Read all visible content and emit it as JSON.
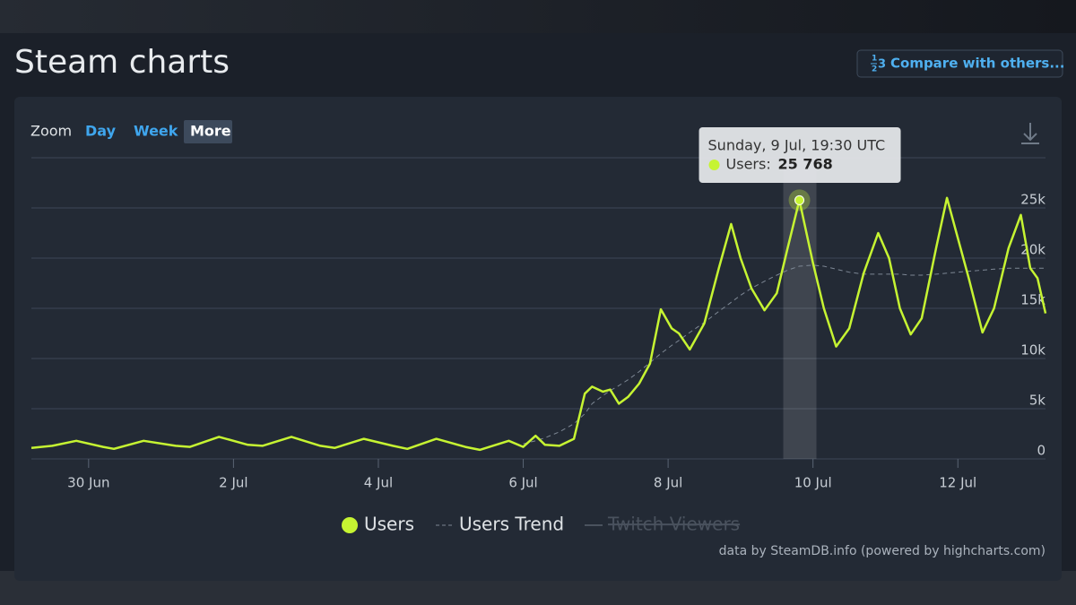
{
  "header": {
    "title": "Steam charts",
    "compare_button": "Compare with others..."
  },
  "zoom": {
    "label": "Zoom",
    "options": [
      "Day",
      "Week",
      "More"
    ],
    "active": "More"
  },
  "credit": "data by SteamDB.info (powered by highcharts.com)",
  "chart_data": {
    "type": "line",
    "x": [
      -0.79,
      -0.5,
      -0.17,
      0.2,
      0.35,
      0.76,
      1.2,
      1.4,
      1.8,
      2.2,
      2.4,
      2.8,
      3.2,
      3.4,
      3.8,
      4.2,
      4.4,
      4.8,
      5.2,
      5.4,
      5.8,
      6.0,
      6.17,
      6.3,
      6.5,
      6.7,
      6.85,
      6.95,
      7.1,
      7.2,
      7.32,
      7.45,
      7.6,
      7.75,
      7.9,
      8.05,
      8.15,
      8.3,
      8.5,
      8.7,
      8.87,
      9.0,
      9.15,
      9.33,
      9.5,
      9.65,
      9.8125,
      10.0,
      10.15,
      10.32,
      10.5,
      10.7,
      10.9,
      11.05,
      11.2,
      11.35,
      11.5,
      11.7,
      11.85,
      12.0,
      12.15,
      12.34,
      12.5,
      12.7,
      12.87,
      13.0,
      13.1,
      13.21
    ],
    "series": [
      {
        "name": "Users",
        "color": "#c6f432",
        "style": "solid",
        "values": [
          1100,
          1300,
          1800,
          1200,
          1000,
          1800,
          1300,
          1200,
          2200,
          1400,
          1300,
          2200,
          1300,
          1100,
          2000,
          1300,
          1000,
          2000,
          1200,
          900,
          1800,
          1200,
          2300,
          1400,
          1300,
          2000,
          6500,
          7200,
          6700,
          6900,
          5500,
          6200,
          7500,
          9500,
          14900,
          13000,
          12500,
          10900,
          13500,
          19000,
          23400,
          20000,
          17000,
          14800,
          16500,
          21000,
          25768,
          19500,
          15000,
          11200,
          13000,
          18500,
          22500,
          20000,
          15000,
          12400,
          14000,
          21000,
          26000,
          22000,
          18000,
          12600,
          15000,
          21000,
          24300,
          19000,
          18000,
          14500
        ]
      },
      {
        "name": "Users Trend",
        "color": "#7d8794",
        "style": "dashed",
        "values": [
          null,
          null,
          null,
          null,
          null,
          null,
          null,
          null,
          null,
          null,
          null,
          null,
          null,
          null,
          null,
          null,
          null,
          null,
          null,
          null,
          null,
          1500,
          1800,
          2100,
          2700,
          3500,
          4500,
          5500,
          6300,
          6800,
          7300,
          7900,
          8700,
          9600,
          10500,
          11300,
          11800,
          12600,
          13600,
          14700,
          15600,
          16300,
          17000,
          17700,
          18300,
          18800,
          19200,
          19300,
          19200,
          18900,
          18600,
          18400,
          18400,
          18400,
          18400,
          18300,
          18300,
          18400,
          18500,
          18600,
          18700,
          18800,
          18900,
          19000,
          19000,
          19000,
          19000,
          19000
        ]
      },
      {
        "name": "Twitch Viewers",
        "color": "#5a6370",
        "style": "solid",
        "visible": false
      }
    ],
    "xlim": [
      -0.79,
      13.21
    ],
    "xticks": [
      {
        "value": 0,
        "label": "30 Jun"
      },
      {
        "value": 2,
        "label": "2 Jul"
      },
      {
        "value": 4,
        "label": "4 Jul"
      },
      {
        "value": 6,
        "label": "6 Jul"
      },
      {
        "value": 8,
        "label": "8 Jul"
      },
      {
        "value": 10,
        "label": "10 Jul"
      },
      {
        "value": 12,
        "label": "12 Jul"
      }
    ],
    "ylim": [
      0,
      30000
    ],
    "yticks": [
      0,
      {
        "value": 5000,
        "label": "5k"
      },
      {
        "value": 10000,
        "label": "10k"
      },
      {
        "value": 15000,
        "label": "15k"
      },
      {
        "value": 20000,
        "label": "20k"
      },
      {
        "value": 25000,
        "label": "25k"
      }
    ],
    "grid": true,
    "legend": "bottom",
    "tooltip": {
      "point": 46,
      "header": "Sunday, 9 Jul, 19:30 UTC",
      "label": "Users:",
      "value_label": "25 768"
    }
  }
}
